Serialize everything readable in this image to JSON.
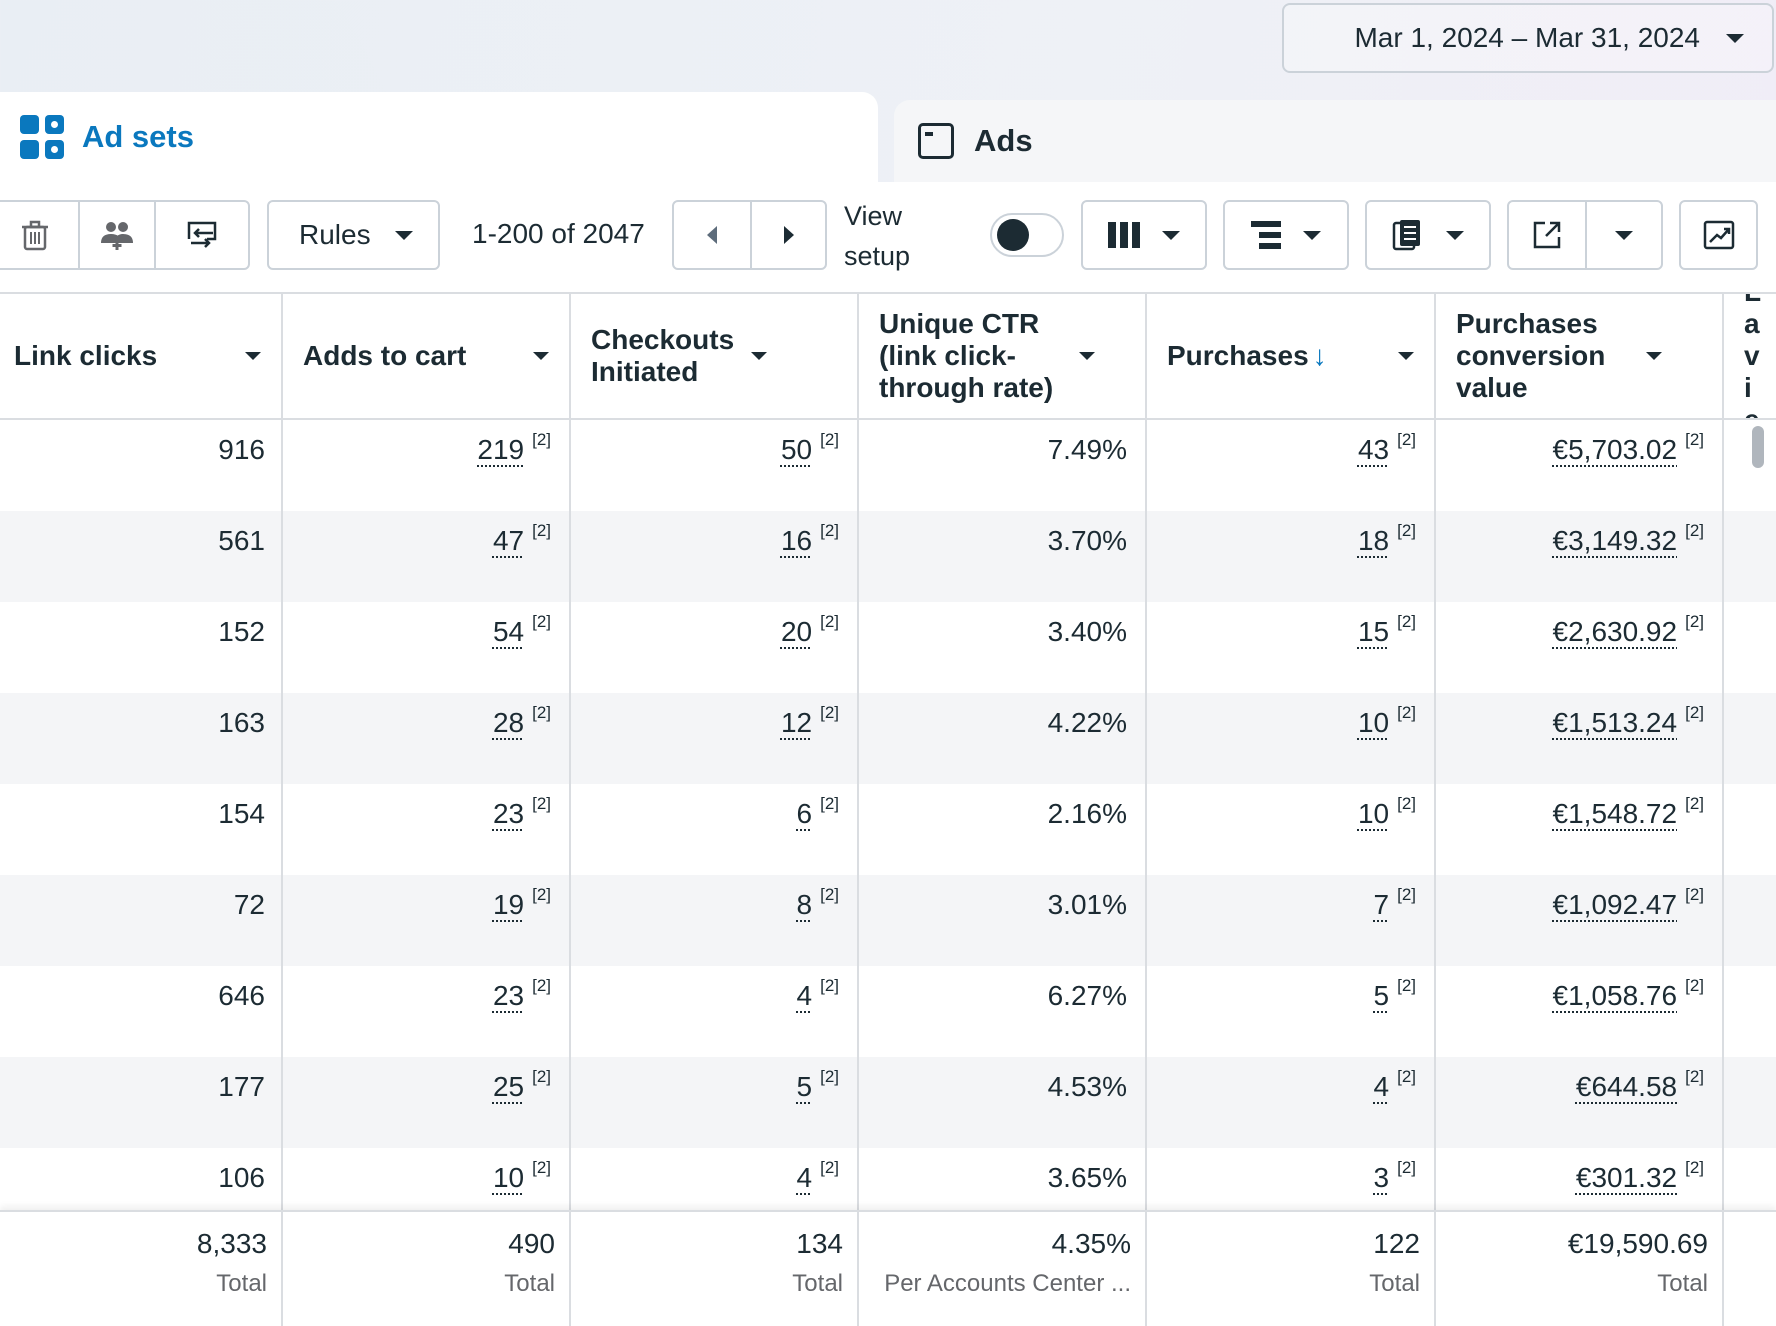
{
  "date_range": {
    "label": "Mar 1, 2024 – Mar 31, 2024"
  },
  "tabs": [
    {
      "label": "Ad sets",
      "icon": "grid-icon",
      "active": true
    },
    {
      "label": "Ads",
      "icon": "ad-icon",
      "active": false
    }
  ],
  "toolbar": {
    "rules_label": "Rules",
    "pagination": "1-200 of 2047",
    "view_setup_line1": "View",
    "view_setup_line2": "setup",
    "icons": [
      "trash-icon",
      "people-add-icon",
      "swap-icon",
      "prev-icon",
      "next-icon",
      "columns-icon",
      "breakdown-icon",
      "reports-icon",
      "export-icon",
      "chart-icon"
    ]
  },
  "columns": [
    {
      "label": "Link clicks"
    },
    {
      "label": "Adds to cart"
    },
    {
      "label": "Checkouts Initiated"
    },
    {
      "label": "Unique CTR (link click-through rate)"
    },
    {
      "label": "Purchases",
      "sorted": "desc"
    },
    {
      "label": "Purchases conversion value"
    },
    {
      "label": "La vie"
    }
  ],
  "reference": "[2]",
  "rows": [
    {
      "link_clicks": "916",
      "adds_to_cart": "219",
      "checkouts": "50",
      "ctr": "7.49%",
      "purchases": "43",
      "value": "€5,703.02"
    },
    {
      "link_clicks": "561",
      "adds_to_cart": "47",
      "checkouts": "16",
      "ctr": "3.70%",
      "purchases": "18",
      "value": "€3,149.32"
    },
    {
      "link_clicks": "152",
      "adds_to_cart": "54",
      "checkouts": "20",
      "ctr": "3.40%",
      "purchases": "15",
      "value": "€2,630.92"
    },
    {
      "link_clicks": "163",
      "adds_to_cart": "28",
      "checkouts": "12",
      "ctr": "4.22%",
      "purchases": "10",
      "value": "€1,513.24"
    },
    {
      "link_clicks": "154",
      "adds_to_cart": "23",
      "checkouts": "6",
      "ctr": "2.16%",
      "purchases": "10",
      "value": "€1,548.72"
    },
    {
      "link_clicks": "72",
      "adds_to_cart": "19",
      "checkouts": "8",
      "ctr": "3.01%",
      "purchases": "7",
      "value": "€1,092.47"
    },
    {
      "link_clicks": "646",
      "adds_to_cart": "23",
      "checkouts": "4",
      "ctr": "6.27%",
      "purchases": "5",
      "value": "€1,058.76"
    },
    {
      "link_clicks": "177",
      "adds_to_cart": "25",
      "checkouts": "5",
      "ctr": "4.53%",
      "purchases": "4",
      "value": "€644.58"
    },
    {
      "link_clicks": "106",
      "adds_to_cart": "10",
      "checkouts": "4",
      "ctr": "3.65%",
      "purchases": "3",
      "value": "€301.32"
    }
  ],
  "totals": [
    {
      "value": "8,333",
      "label": "Total"
    },
    {
      "value": "490",
      "label": "Total"
    },
    {
      "value": "134",
      "label": "Total"
    },
    {
      "value": "4.35%",
      "label": "Per Accounts Center ..."
    },
    {
      "value": "122",
      "label": "Total"
    },
    {
      "value": "€19,590.69",
      "label": "Total"
    }
  ]
}
